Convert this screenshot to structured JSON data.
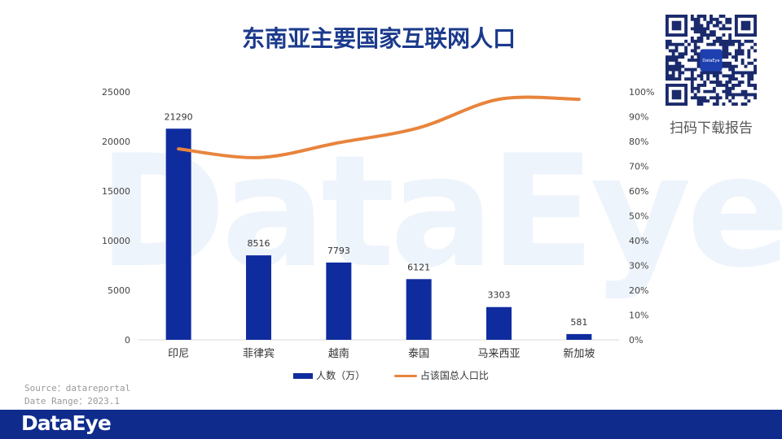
{
  "title": "东南亚主要国家互联网人口",
  "watermark": "DataEye",
  "qr": {
    "caption": "扫码下载报告",
    "badge": "DataEye"
  },
  "source": {
    "line1": "Source：datareportal",
    "line2": "Date Range：2023.1"
  },
  "footer": {
    "logo": "DataEye"
  },
  "colors": {
    "bar": "#0f2c9f",
    "line": "#e8843c",
    "title": "#1b3a8c",
    "footer": "#0f2c8c"
  },
  "chart_data": {
    "type": "bar",
    "categories": [
      "印尼",
      "菲律宾",
      "越南",
      "泰国",
      "马来西亚",
      "新加坡"
    ],
    "series": [
      {
        "name": "人数（万）",
        "type": "bar",
        "axis": "left",
        "values": [
          21290,
          8516,
          7793,
          6121,
          3303,
          581
        ]
      },
      {
        "name": "占该国总人口比",
        "type": "line",
        "axis": "right",
        "values": [
          77,
          73.5,
          79.5,
          85.5,
          97,
          97
        ]
      }
    ],
    "y_left": {
      "range": [
        0,
        25000
      ],
      "ticks": [
        "0",
        "5000",
        "10000",
        "15000",
        "20000",
        "25000"
      ]
    },
    "y_right": {
      "range": [
        0,
        100
      ],
      "ticks": [
        "0%",
        "10%",
        "20%",
        "30%",
        "40%",
        "50%",
        "60%",
        "70%",
        "80%",
        "90%",
        "100%"
      ]
    },
    "legend_position": "bottom",
    "grid": false
  }
}
